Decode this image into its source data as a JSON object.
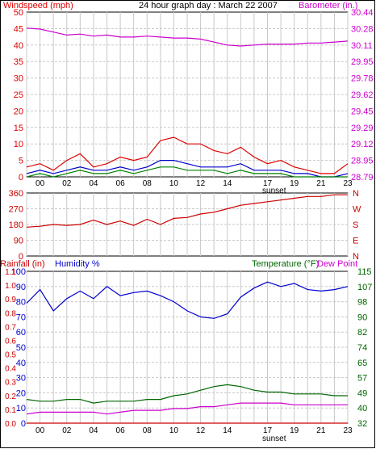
{
  "title": "24 hour graph day : March 22 2007",
  "colors": {
    "wind_high": "#e00000",
    "wind_avg": "#0000cc",
    "wind_low": "#008000",
    "barometer": "#cc00cc",
    "direction": "#cc0000",
    "humidity": "#0000cc",
    "temperature": "#006600",
    "dewpoint": "#cc00cc",
    "rainfall": "#cc0000",
    "grid": "#c8c8c8"
  },
  "x_ticks": [
    "00",
    "02",
    "04",
    "06",
    "08",
    "10",
    "12",
    "14",
    "17",
    "19",
    "21",
    "23"
  ],
  "sunset_label": "sunset",
  "chart_data": [
    {
      "type": "line",
      "id": "wind_baro",
      "labels": {
        "left": "Windspeed (mph)",
        "right": "Barometer (in.)"
      },
      "ylim_left": [
        0,
        50
      ],
      "yticks_left": [
        "0",
        "5",
        "10",
        "15",
        "20",
        "25",
        "30",
        "35",
        "40",
        "45",
        "50"
      ],
      "ylim_right": [
        28.79,
        30.44
      ],
      "yticks_right": [
        "28.79",
        "28.95",
        "29.12",
        "29.29",
        "29.45",
        "29.62",
        "29.78",
        "29.95",
        "30.11",
        "30.28",
        "30.44"
      ],
      "series": [
        {
          "role": "barometer",
          "axis": "right",
          "x": [
            0,
            1,
            2,
            3,
            4,
            5,
            6,
            7,
            8,
            9,
            10,
            11,
            12,
            13,
            14,
            15,
            16,
            17,
            18,
            19,
            20,
            21,
            22,
            23,
            24
          ],
          "values": [
            30.28,
            30.27,
            30.24,
            30.21,
            30.22,
            30.2,
            30.21,
            30.19,
            30.19,
            30.2,
            30.19,
            30.18,
            30.18,
            30.17,
            30.14,
            30.11,
            30.1,
            30.11,
            30.12,
            30.12,
            30.12,
            30.13,
            30.13,
            30.14,
            30.15
          ]
        },
        {
          "role": "wind_high",
          "axis": "left",
          "x": [
            0,
            1,
            2,
            3,
            4,
            5,
            6,
            7,
            8,
            9,
            10,
            11,
            12,
            13,
            14,
            15,
            16,
            17,
            18,
            19,
            20,
            21,
            22,
            23,
            24
          ],
          "values": [
            3,
            4,
            2,
            5,
            7,
            3,
            4,
            6,
            5,
            6,
            11,
            12,
            10,
            10,
            8,
            7,
            9,
            6,
            4,
            5,
            3,
            2,
            1,
            1,
            4
          ]
        },
        {
          "role": "wind_avg",
          "axis": "left",
          "x": [
            0,
            1,
            2,
            3,
            4,
            5,
            6,
            7,
            8,
            9,
            10,
            11,
            12,
            13,
            14,
            15,
            16,
            17,
            18,
            19,
            20,
            21,
            22,
            23,
            24
          ],
          "values": [
            1,
            2,
            1,
            2,
            3,
            2,
            2,
            3,
            2,
            3,
            5,
            5,
            4,
            3,
            3,
            3,
            4,
            2,
            2,
            2,
            1,
            1,
            0,
            0,
            1
          ]
        },
        {
          "role": "wind_low",
          "axis": "left",
          "x": [
            0,
            1,
            2,
            3,
            4,
            5,
            6,
            7,
            8,
            9,
            10,
            11,
            12,
            13,
            14,
            15,
            16,
            17,
            18,
            19,
            20,
            21,
            22,
            23,
            24
          ],
          "values": [
            0,
            1,
            0,
            1,
            2,
            1,
            1,
            2,
            1,
            2,
            3,
            3,
            2,
            2,
            2,
            1,
            2,
            1,
            1,
            1,
            0,
            0,
            0,
            0,
            0
          ]
        }
      ]
    },
    {
      "type": "line",
      "id": "direction",
      "labels": {
        "left": "",
        "right": ""
      },
      "ylim_left": [
        0,
        360
      ],
      "yticks_left": [
        "0",
        "90",
        "180",
        "270",
        "360"
      ],
      "yticks_right": [
        "N",
        "E",
        "S",
        "W",
        "N"
      ],
      "series": [
        {
          "role": "direction",
          "axis": "left",
          "x": [
            0,
            1,
            2,
            3,
            4,
            5,
            6,
            7,
            8,
            9,
            10,
            11,
            12,
            13,
            14,
            15,
            16,
            17,
            18,
            19,
            20,
            21,
            22,
            23,
            24
          ],
          "values": [
            165,
            170,
            180,
            175,
            180,
            205,
            180,
            200,
            175,
            210,
            180,
            215,
            220,
            240,
            250,
            270,
            290,
            300,
            310,
            320,
            330,
            340,
            340,
            350,
            350
          ]
        }
      ]
    },
    {
      "type": "line",
      "id": "humidity_temp",
      "labels": {
        "left_a": "Rainfall (in)",
        "left_b": "Humidity %",
        "right_a": "Temperature (°F)",
        "right_b": "Dew Point"
      },
      "ylim_left": [
        0,
        100
      ],
      "yticks_left": [
        "0",
        "10",
        "20",
        "30",
        "40",
        "50",
        "60",
        "70",
        "80",
        "90",
        "100"
      ],
      "yticks_rain": [
        "0.0",
        "0.1",
        "0.2",
        "0.3",
        "0.4",
        "0.5",
        "0.6",
        "0.7",
        "0.8",
        "0.9",
        "1.0",
        "1.1"
      ],
      "ylim_right": [
        32,
        115
      ],
      "yticks_right": [
        "32",
        "40",
        "49",
        "57",
        "65",
        "74",
        "82",
        "90",
        "98",
        "107",
        "115"
      ],
      "series": [
        {
          "role": "humidity",
          "axis": "left",
          "x": [
            0,
            1,
            2,
            3,
            4,
            5,
            6,
            7,
            8,
            9,
            10,
            11,
            12,
            13,
            14,
            15,
            16,
            17,
            18,
            19,
            20,
            21,
            22,
            23,
            24
          ],
          "values": [
            79,
            88,
            74,
            82,
            87,
            82,
            90,
            84,
            86,
            87,
            84,
            80,
            74,
            70,
            69,
            72,
            83,
            89,
            93,
            90,
            92,
            88,
            87,
            88,
            90
          ]
        },
        {
          "role": "temperature",
          "axis": "right",
          "x": [
            0,
            1,
            2,
            3,
            4,
            5,
            6,
            7,
            8,
            9,
            10,
            11,
            12,
            13,
            14,
            15,
            16,
            17,
            18,
            19,
            20,
            21,
            22,
            23,
            24
          ],
          "values": [
            45,
            44,
            44,
            45,
            45,
            43,
            44,
            44,
            44,
            45,
            45,
            47,
            48,
            50,
            52,
            53,
            52,
            50,
            49,
            49,
            48,
            48,
            48,
            47,
            47
          ]
        },
        {
          "role": "dewpoint",
          "axis": "right",
          "x": [
            0,
            1,
            2,
            3,
            4,
            5,
            6,
            7,
            8,
            9,
            10,
            11,
            12,
            13,
            14,
            15,
            16,
            17,
            18,
            19,
            20,
            21,
            22,
            23,
            24
          ],
          "values": [
            37,
            38,
            38,
            38,
            38,
            38,
            37,
            38,
            39,
            39,
            39,
            40,
            40,
            41,
            41,
            42,
            43,
            43,
            43,
            43,
            42,
            42,
            42,
            42,
            42
          ]
        },
        {
          "role": "rainfall",
          "axis": "rain",
          "x": [
            0,
            24
          ],
          "values": [
            0.0,
            0.0
          ]
        }
      ]
    }
  ]
}
